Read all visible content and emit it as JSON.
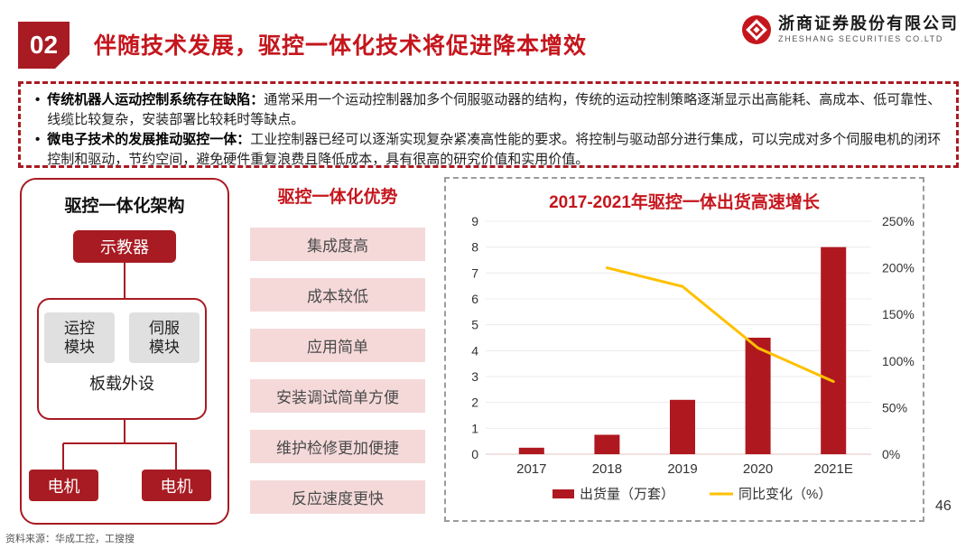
{
  "header": {
    "section_number": "02",
    "title": "伴随技术发展，驱控一体化技术将促进降本增效",
    "logo": {
      "cn": "浙商证券股份有限公司",
      "en": "ZHESHANG SECURITIES CO.LTD"
    }
  },
  "summary": {
    "bullets": [
      {
        "lead": "传统机器人运动控制系统存在缺陷：",
        "text": "通常采用一个运动控制器加多个伺服驱动器的结构，传统的运动控制策略逐渐显示出高能耗、高成本、低可靠性、线缆比较复杂，安装部署比较耗时等缺点。"
      },
      {
        "lead": "微电子技术的发展推动驱控一体：",
        "text": "工业控制器已经可以逐渐实现复杂紧凑高性能的要求。将控制与驱动部分进行集成，可以完成对多个伺服电机的闭环控制和驱动，节约空间，避免硬件重复浪费且降低成本，具有很高的研究价值和实用价值。"
      }
    ]
  },
  "architecture": {
    "title": "驱控一体化架构",
    "teach_pendant": "示教器",
    "modules": [
      "运控模块",
      "伺服模块"
    ],
    "onboard": "板载外设",
    "motors": [
      "电机",
      "电机"
    ]
  },
  "advantages": {
    "title": "驱控一体化优势",
    "items": [
      "集成度高",
      "成本较低",
      "应用简单",
      "安装调试简单方便",
      "维护检修更加便捷",
      "反应速度更快"
    ]
  },
  "chart_data": {
    "type": "bar",
    "title": "2017-2021年驱控一体出货高速增长",
    "categories": [
      "2017",
      "2018",
      "2019",
      "2020",
      "2021E"
    ],
    "series": [
      {
        "name": "出货量（万套）",
        "type": "bar",
        "axis": "left",
        "color": "#B01820",
        "values": [
          0.25,
          0.75,
          2.1,
          4.5,
          8
        ]
      },
      {
        "name": "同比变化（%）",
        "type": "line",
        "axis": "right",
        "color": "#FFC000",
        "values": [
          null,
          200,
          180,
          114,
          78
        ]
      }
    ],
    "left_axis": {
      "min": 0,
      "max": 9,
      "ticks": [
        0,
        1,
        2,
        3,
        4,
        5,
        6,
        7,
        8,
        9
      ]
    },
    "right_axis": {
      "min": 0,
      "max": 250,
      "ticks": [
        "0%",
        "50%",
        "100%",
        "150%",
        "200%",
        "250%"
      ]
    },
    "grid": true,
    "legend_position": "bottom"
  },
  "footer": {
    "source": "资料来源：华成工控，工搜搜",
    "page_number": "46"
  },
  "colors": {
    "brand_red": "#A81B22",
    "title_red": "#C5161D",
    "bar_red": "#B01820",
    "line_yellow": "#FFC000",
    "pink": "#F5D9D9",
    "gray_box": "#E0E0E0"
  }
}
